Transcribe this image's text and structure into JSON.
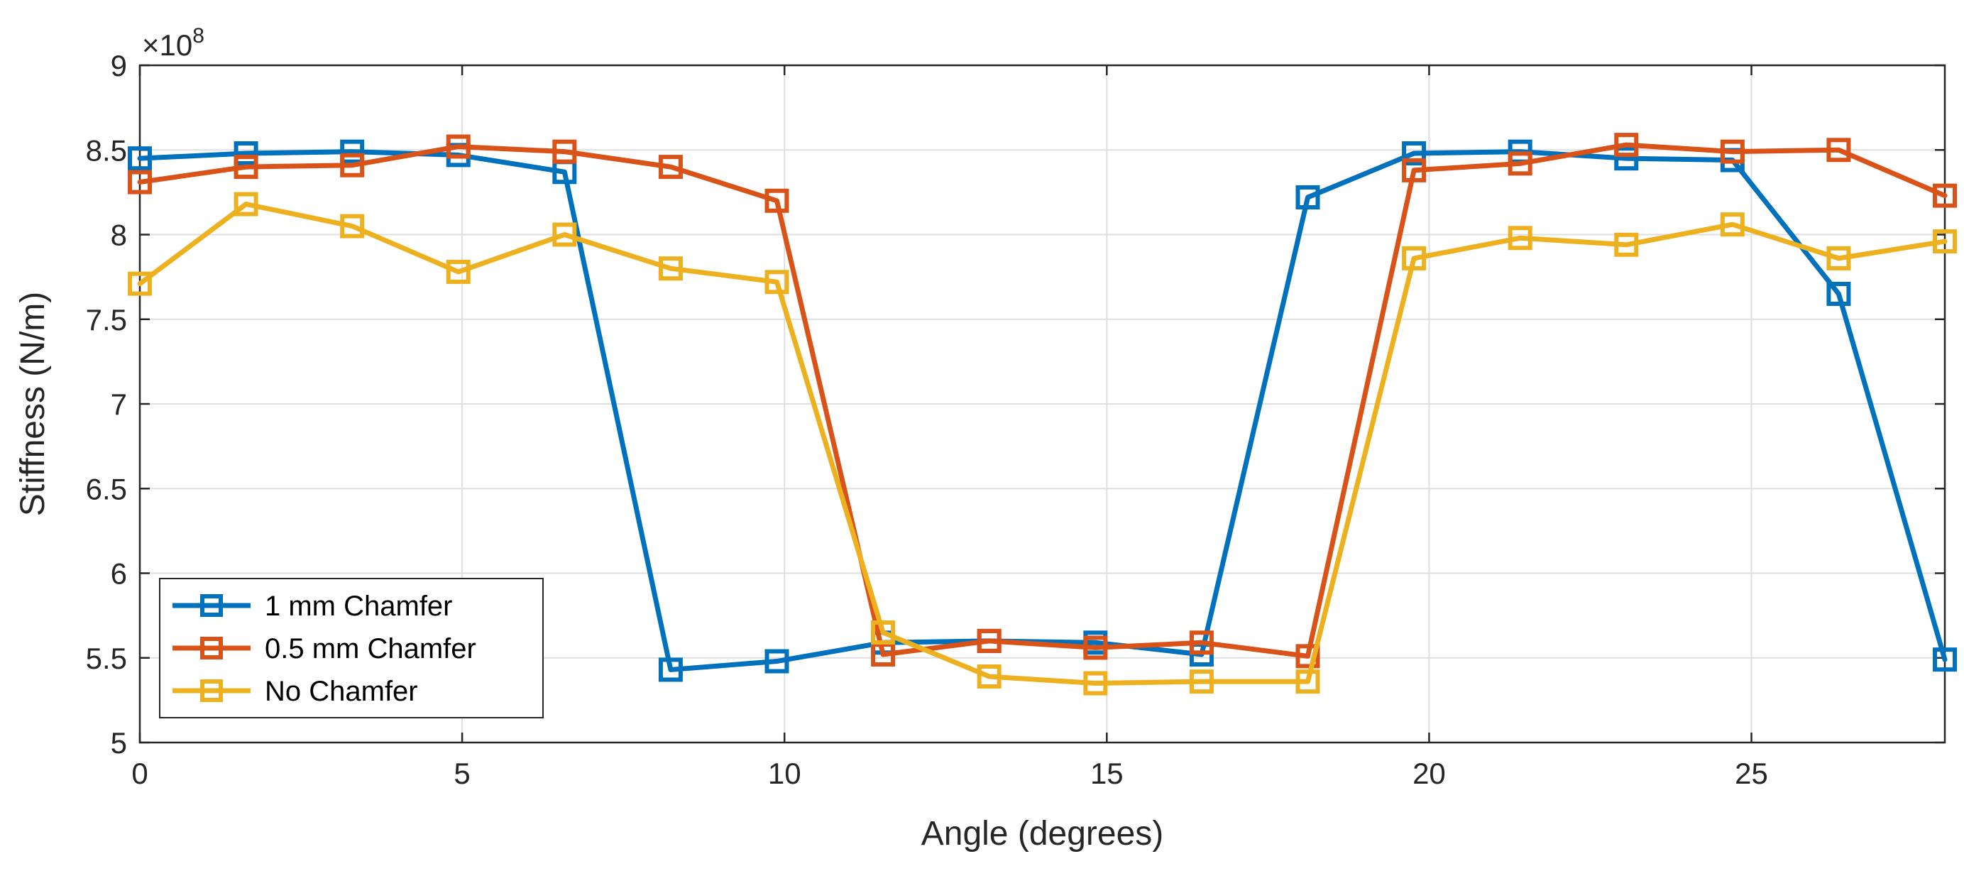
{
  "chart_data": {
    "type": "line",
    "title": "",
    "xlabel": "Angle (degrees)",
    "ylabel": "Stiffness (N/m)",
    "y_exponent": {
      "multiplier": "×10",
      "power": "8"
    },
    "xlim": [
      0,
      28
    ],
    "ylim": [
      5,
      9
    ],
    "xticks": [
      0,
      5,
      10,
      15,
      20,
      25
    ],
    "yticks": [
      5,
      5.5,
      6,
      6.5,
      7,
      7.5,
      8,
      8.5,
      9
    ],
    "xtick_labels": [
      "0",
      "5",
      "10",
      "15",
      "20",
      "25"
    ],
    "ytick_labels": [
      "5",
      "5.5",
      "6",
      "6.5",
      "7",
      "7.5",
      "8",
      "8.5",
      "9"
    ],
    "grid": true,
    "legend_position": "bottom-left",
    "x": [
      0,
      1.647,
      3.294,
      4.941,
      6.588,
      8.235,
      9.882,
      11.529,
      13.176,
      14.824,
      16.471,
      18.118,
      19.765,
      21.412,
      23.059,
      24.706,
      26.353,
      28.0
    ],
    "series": [
      {
        "name": "1 mm Chamfer",
        "color": "#0072BD",
        "values": [
          8.45,
          8.48,
          8.49,
          8.47,
          8.37,
          5.43,
          5.48,
          5.59,
          5.6,
          5.59,
          5.52,
          8.22,
          8.48,
          8.49,
          8.45,
          8.44,
          7.65,
          5.49
        ]
      },
      {
        "name": "0.5 mm Chamfer",
        "color": "#D95319",
        "values": [
          8.31,
          8.4,
          8.41,
          8.52,
          8.49,
          8.4,
          8.2,
          5.52,
          5.6,
          5.56,
          5.59,
          5.51,
          8.38,
          8.42,
          8.53,
          8.49,
          8.5,
          8.23
        ]
      },
      {
        "name": "No Chamfer",
        "color": "#EDB120",
        "values": [
          7.71,
          8.18,
          8.05,
          7.78,
          8.0,
          7.8,
          7.72,
          5.65,
          5.39,
          5.35,
          5.36,
          5.36,
          7.86,
          7.98,
          7.94,
          8.06,
          7.86,
          7.96
        ]
      }
    ]
  }
}
